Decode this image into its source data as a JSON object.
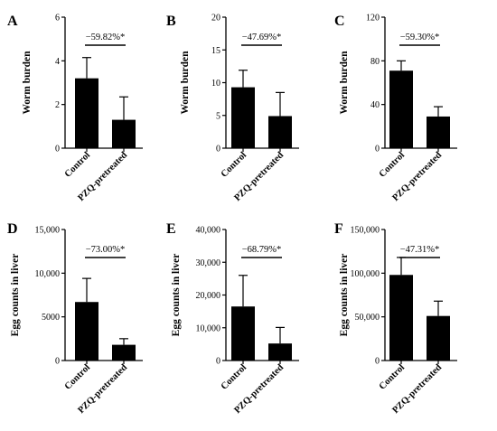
{
  "chart_data": [
    {
      "panel": "A",
      "type": "bar",
      "ylabel": "Worm burden",
      "categories": [
        "Control",
        "PZQ-pretreated"
      ],
      "values": [
        3.2,
        1.3
      ],
      "errors": [
        0.95,
        1.05
      ],
      "ylim": [
        0,
        6
      ],
      "yticks": [
        0,
        2,
        4,
        6
      ],
      "ytick_labels": [
        "0",
        "2",
        "4",
        "6"
      ],
      "annotation": "−59.82%*"
    },
    {
      "panel": "B",
      "type": "bar",
      "ylabel": "Worm burden",
      "categories": [
        "Control",
        "PZQ-pretreated"
      ],
      "values": [
        9.3,
        4.9
      ],
      "errors": [
        2.6,
        3.6
      ],
      "ylim": [
        0,
        20
      ],
      "yticks": [
        0,
        5,
        10,
        15,
        20
      ],
      "ytick_labels": [
        "0",
        "5",
        "10",
        "15",
        "20"
      ],
      "annotation": "−47.69%*"
    },
    {
      "panel": "C",
      "type": "bar",
      "ylabel": "Worm burden",
      "categories": [
        "Control",
        "PZQ-pretreated"
      ],
      "values": [
        71,
        29
      ],
      "errors": [
        9,
        9
      ],
      "ylim": [
        0,
        120
      ],
      "yticks": [
        0,
        40,
        80,
        120
      ],
      "ytick_labels": [
        "0",
        "40",
        "80",
        "120"
      ],
      "annotation": "−59.30%*"
    },
    {
      "panel": "D",
      "type": "bar",
      "ylabel": "Egg counts in liver",
      "categories": [
        "Control",
        "PZQ-pretreated"
      ],
      "values": [
        6700,
        1800
      ],
      "errors": [
        2700,
        700
      ],
      "ylim": [
        0,
        15000
      ],
      "yticks": [
        0,
        5000,
        10000,
        15000
      ],
      "ytick_labels": [
        "0",
        "5000",
        "10,000",
        "15,000"
      ],
      "annotation": "−73.00%*"
    },
    {
      "panel": "E",
      "type": "bar",
      "ylabel": "Egg counts in liver",
      "categories": [
        "Control",
        "PZQ-pretreated"
      ],
      "values": [
        16500,
        5200
      ],
      "errors": [
        9500,
        4900
      ],
      "ylim": [
        0,
        40000
      ],
      "yticks": [
        0,
        10000,
        20000,
        30000,
        40000
      ],
      "ytick_labels": [
        "0",
        "10,000",
        "20,000",
        "30,000",
        "40,000"
      ],
      "annotation": "−68.79%*"
    },
    {
      "panel": "F",
      "type": "bar",
      "ylabel": "Egg counts in liver",
      "categories": [
        "Control",
        "PZQ-pretreated"
      ],
      "values": [
        98000,
        51000
      ],
      "errors": [
        20000,
        17000
      ],
      "ylim": [
        0,
        150000
      ],
      "yticks": [
        0,
        50000,
        100000,
        150000
      ],
      "ytick_labels": [
        "0",
        "50,000",
        "100,000",
        "150,000"
      ],
      "annotation": "−47.31%*"
    }
  ],
  "colors": {
    "bar": "#000000",
    "axis": "#000000",
    "background": "#ffffff"
  }
}
